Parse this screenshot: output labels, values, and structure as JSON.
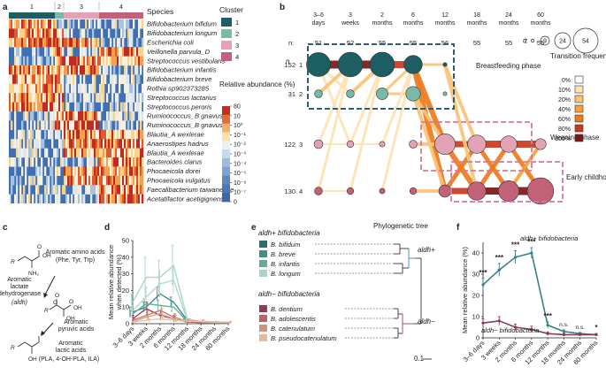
{
  "panel_labels": [
    "a",
    "b",
    "c",
    "d",
    "e",
    "f"
  ],
  "panel_a": {
    "cluster_numbers": [
      "1",
      "2",
      "3",
      "4"
    ],
    "species_title": "Species",
    "species": [
      "Bifidobacterium bifidum",
      "Bifidobacterium longum",
      "Escherichia coli",
      "Veillonella parvula_D",
      "Streptococcus vestibularis",
      "Bifidobacterium infantis",
      "Bifidobacterium breve",
      "Rothia sp902373285",
      "Streptococcus lactarius",
      "Streptococcus peroris",
      "Ruminococcus_B gnavus",
      "Ruminococcus_B gnavus",
      "Blautia_A wexlerae",
      "Anaerostipes hadrus",
      "Blautia_A wexlerae",
      "Bacteroides clarus",
      "Phocaeicola dorei",
      "Phocaeicola vulgatus",
      "Faecalibacterium taiwanense",
      "Acetatifactor acetigignens"
    ],
    "cluster_legend_title": "Cluster",
    "cluster_legend": [
      {
        "label": "1",
        "color": "#1d5e62"
      },
      {
        "label": "2",
        "color": "#7ab8a8"
      },
      {
        "label": "3",
        "color": "#e3a3b5"
      },
      {
        "label": "4",
        "color": "#c26178"
      }
    ],
    "colorbar_title": "Relative abundance (%)",
    "colorbar_ticks": [
      "80",
      "10",
      "10⁰",
      "10⁻¹",
      "10⁻²",
      "10⁻³",
      "10⁻⁴",
      "10⁻⁵",
      "10⁻⁶",
      "10⁻⁷",
      "0"
    ]
  },
  "panel_b": {
    "time_labels": [
      "3–6 days",
      "3 weeks",
      "2 months",
      "6 months",
      "12 months",
      "18 months",
      "24 months",
      "60 months"
    ],
    "n_header": "n:",
    "n_values": [
      "51",
      "52",
      "55",
      "55",
      "56",
      "55",
      "55",
      "55"
    ],
    "row_n_label": "n",
    "row_counts": [
      "152",
      "31",
      "122",
      "130"
    ],
    "row_clusters": [
      "1",
      "2",
      "3",
      "4"
    ],
    "phase_labels": [
      "Breastfeeding phase",
      "Weaning phase",
      "Early childhood phase"
    ],
    "size_legend": {
      "n_label": "n",
      "values": [
        "2",
        "9",
        "24",
        "54"
      ]
    },
    "transition_title": "Transition frequency",
    "transition_levels": [
      {
        "label": "0%",
        "color": "#ffffff"
      },
      {
        "label": "10%",
        "color": "#fde3b3"
      },
      {
        "label": "20%",
        "color": "#f9c47a"
      },
      {
        "label": "40%",
        "color": "#f5a039"
      },
      {
        "label": "60%",
        "color": "#ee7a1e"
      },
      {
        "label": "80%",
        "color": "#c73a1d"
      },
      {
        "label": "100%",
        "color": "#7a1616"
      }
    ]
  },
  "panel_c": {
    "labels": [
      "Aromatic amino acids",
      "(Phe, Tyr, Trp)",
      "Aromatic lactate dehydrogenase",
      "(aldh)",
      "Aromatic pyruvic acids",
      "Aromatic lactic acids",
      "(PLA, 4-OH-PLA, ILA)"
    ],
    "chem_labels": [
      "R",
      "O",
      "OH",
      "NH₂",
      "O",
      "OH",
      "R",
      "O",
      "O",
      "OH",
      "R",
      "OH"
    ]
  },
  "panel_d": {
    "ylabel": "Mean relative abundance when detected (%)",
    "yticks": [
      "0",
      "10",
      "20",
      "30",
      "40",
      "50"
    ],
    "colors": [
      "#3a8a8e",
      "#5fb19a",
      "#a9d8c0",
      "#b2d9c9",
      "#9b4158",
      "#c57672",
      "#d8a184",
      "#e8c4a8"
    ],
    "xticks": [
      "3–6 days",
      "3 weeks",
      "2 months",
      "6 months",
      "12 months",
      "18 months",
      "24 months",
      "60 months"
    ]
  },
  "panel_e": {
    "aldh_plus_title": "aldh+ bifidobacteria",
    "aldh_minus_title": "aldh− bifidobacteria",
    "tree_title": "Phylogenetic tree",
    "plus_node": "aldh+",
    "minus_node": "aldh−",
    "scale": "0.1",
    "species_plus": [
      {
        "name": "B. bifidum",
        "color": "#2e6e72"
      },
      {
        "name": "B. breve",
        "color": "#3f8f85"
      },
      {
        "name": "B. infantis",
        "color": "#63ad97"
      },
      {
        "name": "B. longum",
        "color": "#a8d6c2"
      }
    ],
    "species_minus": [
      {
        "name": "B. dentium",
        "color": "#8e3c4f"
      },
      {
        "name": "B. adolescentis",
        "color": "#b36569"
      },
      {
        "name": "B. catenulatum",
        "color": "#cf957c"
      },
      {
        "name": "B. pseudocatenulatum",
        "color": "#e3bb9c"
      }
    ]
  },
  "panel_f": {
    "ylabel": "Mean relative abundance (%)",
    "yticks": [
      "0",
      "10",
      "20",
      "30",
      "40"
    ],
    "xticks": [
      "3–6 days",
      "3 weeks",
      "2 months",
      "6 months",
      "12 months",
      "18 months",
      "24 months",
      "60 months"
    ],
    "significance": [
      "***",
      "***",
      "***",
      "***",
      "***",
      "n.s.",
      "n.s.",
      "*"
    ],
    "series_plus_label": "aldh+ bifidobacteria",
    "series_minus_label": "aldh− bifidobacteria",
    "plus_color": "#3d7f86",
    "minus_color": "#8a3b57"
  },
  "chart_data": [
    {
      "type": "line",
      "panel": "d",
      "x": [
        "3–6 days",
        "3 weeks",
        "2 months",
        "6 months",
        "12 months",
        "18 months",
        "24 months",
        "60 months"
      ],
      "ylim": [
        0,
        50
      ],
      "series": [
        {
          "values": [
            7,
            10,
            18,
            13,
            2,
            1,
            0.5,
            0.3
          ]
        },
        {
          "values": [
            6,
            12,
            11,
            10,
            1.5,
            0.5,
            0.3,
            0.2
          ]
        },
        {
          "values": [
            13,
            28,
            28,
            35,
            3,
            1,
            0.5,
            0.3
          ]
        },
        {
          "values": [
            8,
            16,
            24,
            26,
            2,
            1,
            0.5,
            0.3
          ]
        },
        {
          "values": [
            3,
            9,
            5,
            3,
            1,
            0.8,
            0.5,
            0.3
          ]
        },
        {
          "values": [
            2,
            5,
            8,
            4,
            1.5,
            1,
            0.6,
            0.4
          ]
        },
        {
          "values": [
            1,
            4,
            6,
            3,
            2,
            1.5,
            1,
            0.8
          ]
        },
        {
          "values": [
            1,
            2,
            3,
            2,
            1.5,
            1.2,
            1,
            1
          ]
        }
      ],
      "errors": [
        [
          3,
          3,
          4,
          3,
          1,
          0.5,
          0.3,
          0.2
        ],
        [
          2,
          3,
          3,
          3,
          0.8,
          0.3,
          0.2,
          0.1
        ],
        [
          5,
          12,
          10,
          12,
          1.5,
          0.5,
          0.3,
          0.2
        ],
        [
          3,
          6,
          8,
          8,
          1,
          0.5,
          0.3,
          0.2
        ],
        [
          2,
          4,
          3,
          2,
          0.5,
          0.4,
          0.3,
          0.2
        ],
        [
          1,
          3,
          3,
          2,
          0.8,
          0.5,
          0.3,
          0.2
        ],
        [
          1,
          2,
          3,
          2,
          1,
          0.8,
          0.5,
          0.4
        ],
        [
          0.5,
          1,
          1.5,
          1,
          0.8,
          0.6,
          0.5,
          0.5
        ]
      ]
    },
    {
      "type": "line",
      "panel": "f",
      "x": [
        "3–6 days",
        "3 weeks",
        "2 months",
        "6 months",
        "12 months",
        "18 months",
        "24 months",
        "60 months"
      ],
      "ylim": [
        0,
        45
      ],
      "series": [
        {
          "name": "aldh+ bifidobacteria",
          "values": [
            25,
            32,
            38,
            40,
            6,
            3,
            2,
            1.5
          ],
          "errors": [
            3,
            3,
            3,
            2.5,
            1.5,
            0.8,
            0.6,
            0.5
          ]
        },
        {
          "name": "aldh− bifidobacteria",
          "values": [
            7,
            8,
            5,
            4,
            2,
            1.5,
            1.5,
            1.5
          ],
          "errors": [
            2,
            2,
            1.5,
            1.5,
            0.8,
            0.6,
            0.5,
            0.5
          ]
        }
      ]
    }
  ]
}
